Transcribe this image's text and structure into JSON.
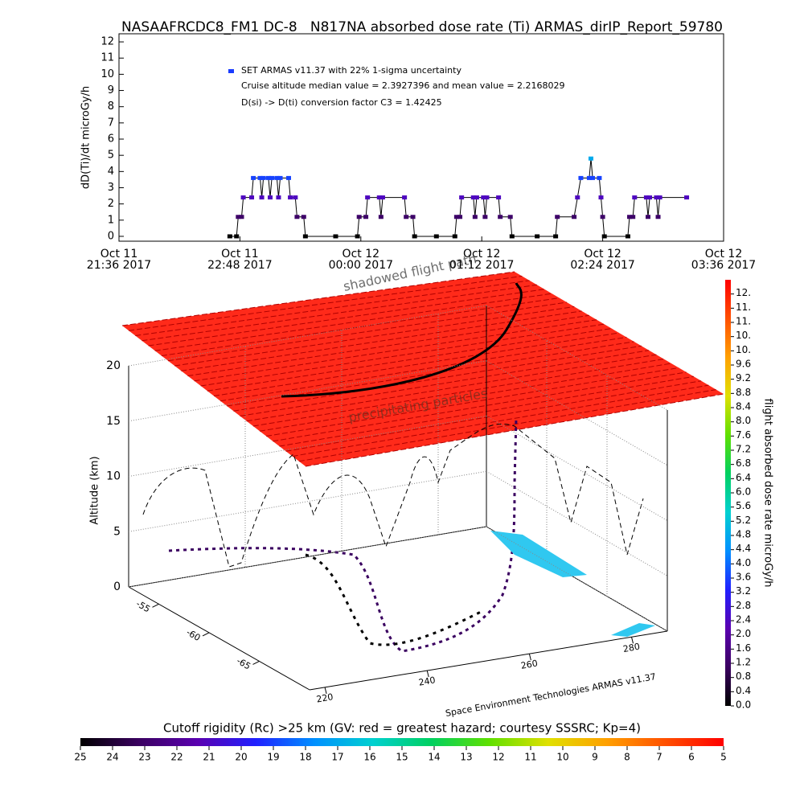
{
  "chart_data": [
    {
      "type": "line",
      "title": "NASAAFRCDC8_FM1 DC-8   N817NA absorbed dose rate (Ti) ARMAS_dirIP_Report_59780",
      "y_label": "dD(Ti)/dt microGy/h",
      "annotations": [
        "Cruise altitude median value = 2.3927396 and mean value = 2.2168029",
        "D(si) -> D(ti) conversion factor C3 = 1.42425"
      ],
      "xlim": [
        "2017-10-11T21:36",
        "2017-10-12T03:36"
      ],
      "xticks": [
        {
          "value": "2017-10-11T21:36",
          "label": [
            "Oct 11",
            "21:36 2017"
          ]
        },
        {
          "value": "2017-10-11T22:48",
          "label": [
            "Oct 11",
            "22:48 2017"
          ]
        },
        {
          "value": "2017-10-12T00:00",
          "label": [
            "Oct 12",
            "00:00 2017"
          ]
        },
        {
          "value": "2017-10-12T01:12",
          "label": [
            "Oct 12",
            "01:12 2017"
          ]
        },
        {
          "value": "2017-10-12T02:24",
          "label": [
            "Oct 12",
            "02:24 2017"
          ]
        },
        {
          "value": "2017-10-12T03:36",
          "label": [
            "Oct 12",
            "03:36 2017"
          ]
        }
      ],
      "ylim": [
        -0.3,
        12.5
      ],
      "yticks": [
        0,
        1,
        2,
        3,
        4,
        5,
        6,
        7,
        8,
        9,
        10,
        11,
        12
      ],
      "x": [
        "2017-10-11T22:42",
        "2017-10-11T22:46",
        "2017-10-11T22:47",
        "2017-10-11T22:49",
        "2017-10-11T22:50",
        "2017-10-11T22:55",
        "2017-10-11T22:56",
        "2017-10-11T23:00",
        "2017-10-11T23:01",
        "2017-10-11T23:02",
        "2017-10-11T23:05",
        "2017-10-11T23:06",
        "2017-10-11T23:07",
        "2017-10-11T23:10",
        "2017-10-11T23:11",
        "2017-10-11T23:12",
        "2017-10-11T23:17",
        "2017-10-11T23:18",
        "2017-10-11T23:21",
        "2017-10-11T23:22",
        "2017-10-11T23:26",
        "2017-10-11T23:27",
        "2017-10-11T23:45",
        "2017-10-11T23:58",
        "2017-10-11T23:59",
        "2017-10-12T00:03",
        "2017-10-12T00:04",
        "2017-10-12T00:11",
        "2017-10-12T00:12",
        "2017-10-12T00:13",
        "2017-10-12T00:26",
        "2017-10-12T00:27",
        "2017-10-12T00:31",
        "2017-10-12T00:32",
        "2017-10-12T00:45",
        "2017-10-12T00:56",
        "2017-10-12T00:57",
        "2017-10-12T00:59",
        "2017-10-12T01:00",
        "2017-10-12T01:07",
        "2017-10-12T01:08",
        "2017-10-12T01:09",
        "2017-10-12T01:13",
        "2017-10-12T01:14",
        "2017-10-12T01:15",
        "2017-10-12T01:22",
        "2017-10-12T01:23",
        "2017-10-12T01:29",
        "2017-10-12T01:30",
        "2017-10-12T01:45",
        "2017-10-12T01:56",
        "2017-10-12T01:57",
        "2017-10-12T02:07",
        "2017-10-12T02:09",
        "2017-10-12T02:11",
        "2017-10-12T02:16",
        "2017-10-12T02:17",
        "2017-10-12T02:18",
        "2017-10-12T02:22",
        "2017-10-12T02:23",
        "2017-10-12T02:24",
        "2017-10-12T02:25",
        "2017-10-12T02:39",
        "2017-10-12T02:40",
        "2017-10-12T02:42",
        "2017-10-12T02:43",
        "2017-10-12T02:50",
        "2017-10-12T02:51",
        "2017-10-12T02:52",
        "2017-10-12T02:56",
        "2017-10-12T02:57",
        "2017-10-12T02:58",
        "2017-10-12T03:14"
      ],
      "series": [
        {
          "name": "SET ARMAS v11.37 with 22% 1-sigma uncertainty",
          "color": "#1a3cff",
          "values": [
            0,
            0,
            1.2,
            1.2,
            2.4,
            2.4,
            3.6,
            3.6,
            2.4,
            3.6,
            3.6,
            2.4,
            3.6,
            3.6,
            2.4,
            3.6,
            3.6,
            2.4,
            2.4,
            1.2,
            1.2,
            0,
            0,
            0,
            1.2,
            1.2,
            2.4,
            2.4,
            1.2,
            2.4,
            2.4,
            1.2,
            1.2,
            0,
            0,
            0,
            1.2,
            1.2,
            2.4,
            2.4,
            1.2,
            2.4,
            2.4,
            1.2,
            2.4,
            2.4,
            1.2,
            1.2,
            0,
            0,
            0,
            1.2,
            1.2,
            2.4,
            3.6,
            3.6,
            4.8,
            3.6,
            3.6,
            2.4,
            1.2,
            0,
            0,
            1.2,
            1.2,
            2.4,
            2.4,
            1.2,
            2.4,
            2.4,
            1.2,
            2.4,
            2.4
          ]
        }
      ]
    },
    {
      "type": "3d",
      "z_label": "Altitude (km)",
      "zlim": [
        0,
        20
      ],
      "zticks": [
        0,
        5,
        10,
        15,
        20
      ],
      "ylim": [
        -52,
        -70
      ],
      "yticks": [
        -55,
        -60,
        -65
      ],
      "xlim": [
        217,
        287
      ],
      "xticks": [
        220,
        240,
        260,
        280
      ],
      "annotations": [
        "shadowed flight path",
        "precipitating particles"
      ],
      "credit": "Space Environment Technologies ARMAS v11.37"
    },
    {
      "type": "colorbar",
      "label": "flight absorbed dose rate microGy/h",
      "ylim": [
        0,
        12
      ],
      "yticks": [
        {
          "value": 0,
          "label": "0.0"
        },
        0.4,
        0.8,
        1.2,
        1.6,
        {
          "value": 2,
          "label": "2.0"
        },
        2.4,
        2.8,
        3.2,
        3.6,
        {
          "value": 4,
          "label": "4.0"
        },
        4.4,
        4.8,
        5.2,
        5.6,
        {
          "value": 6,
          "label": "6.0"
        },
        6.4,
        6.8,
        7.2,
        7.6,
        {
          "value": 8,
          "label": "8.0"
        },
        8.4,
        8.8,
        9.2,
        9.6,
        {
          "value": 10,
          "label": "10."
        },
        {
          "value": 10.4,
          "label": "10."
        },
        {
          "value": 10.8,
          "label": "11."
        },
        {
          "value": 11.2,
          "label": "11."
        },
        {
          "value": 11.6,
          "label": "12."
        }
      ],
      "colors": [
        "#000000",
        "#3a0060",
        "#5a00b0",
        "#2020ff",
        "#0090ff",
        "#00d0d0",
        "#00d060",
        "#60e000",
        "#e0e000",
        "#ffa000",
        "#ff5000",
        "#ff0000"
      ]
    },
    {
      "type": "colorbar",
      "title": "Cutoff rigidity (Rc) >25 km (GV: red = greatest hazard; courtesy SSSRC; Kp=4)",
      "xlim": [
        25,
        5
      ],
      "xticks": [
        25,
        24,
        23,
        22,
        21,
        20,
        19,
        18,
        17,
        16,
        15,
        14,
        13,
        12,
        11,
        10,
        9,
        8,
        7,
        6,
        5
      ],
      "colors": [
        "#000000",
        "#3a0060",
        "#5a00b0",
        "#2020ff",
        "#0090ff",
        "#00d0d0",
        "#00d060",
        "#60e000",
        "#e0e000",
        "#ffa000",
        "#ff5000",
        "#ff0000"
      ]
    }
  ]
}
